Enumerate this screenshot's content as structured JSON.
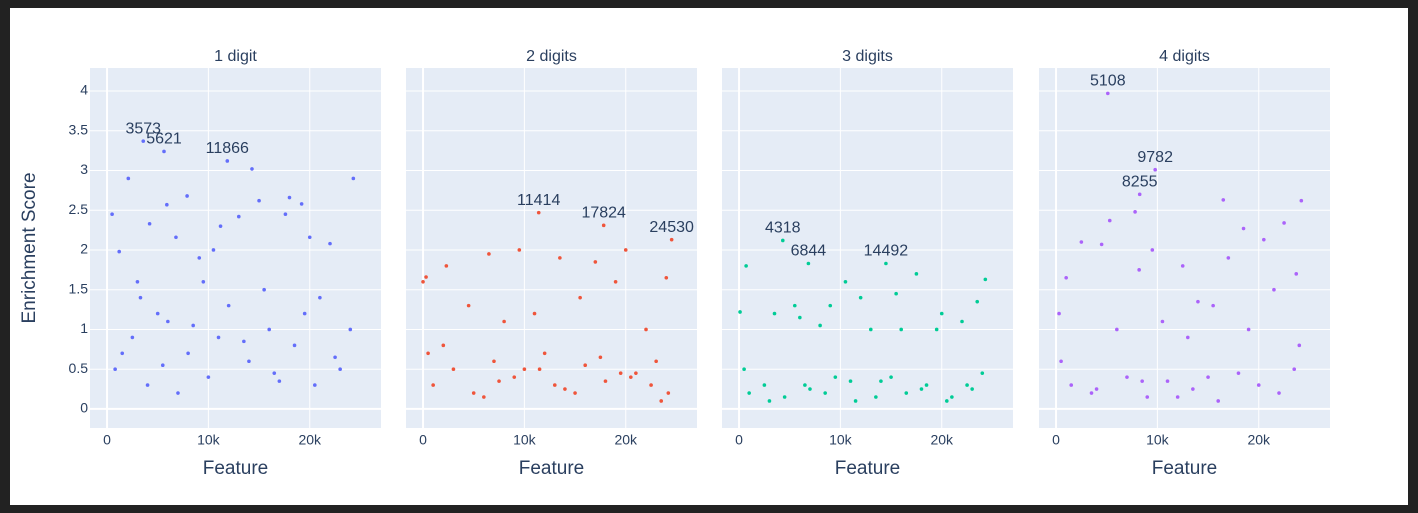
{
  "chart_data": {
    "type": "scatter",
    "y_title": "Enrichment Score",
    "x_title": "Feature",
    "xlim": [
      -1680,
      27030
    ],
    "xticks": [
      0,
      {
        "value": 10000,
        "label": "10k"
      },
      {
        "value": 20000,
        "label": "20k"
      }
    ],
    "ylim": [
      -0.24,
      4.29
    ],
    "yticks": [
      0,
      0.5,
      1,
      1.5,
      2,
      2.5,
      3,
      3.5,
      4
    ],
    "grid": true,
    "panels": [
      {
        "title": "1 digit",
        "color": "#636efa",
        "x": [
          500,
          1200,
          2100,
          3000,
          4200,
          5000,
          5900,
          6800,
          7900,
          9100,
          10500,
          11200,
          13000,
          14300,
          15000,
          17600,
          18000,
          19200,
          20000,
          22000,
          24300,
          800,
          2500,
          4000,
          6000,
          8000,
          10000,
          12000,
          14000,
          16000,
          18500,
          21000,
          23000,
          24000,
          3300,
          9500,
          15500,
          20500,
          7000,
          11000,
          1500,
          5500,
          13500,
          17000,
          22500,
          19500,
          8500,
          16500
        ],
        "y": [
          2.45,
          1.98,
          2.9,
          1.6,
          2.33,
          1.2,
          2.57,
          2.16,
          2.68,
          1.9,
          2.0,
          2.3,
          2.42,
          3.02,
          2.62,
          2.45,
          2.66,
          2.58,
          2.16,
          2.08,
          2.9,
          0.5,
          0.9,
          0.3,
          1.1,
          0.7,
          0.4,
          1.3,
          0.6,
          1.0,
          0.8,
          1.4,
          0.5,
          1.0,
          1.4,
          1.6,
          1.5,
          0.3,
          0.2,
          0.9,
          0.7,
          0.55,
          0.85,
          0.35,
          0.65,
          1.2,
          1.05,
          0.45
        ],
        "annotations": [
          {
            "x": 3573,
            "y": 3.37
          },
          {
            "x": 5621,
            "y": 3.24
          },
          {
            "x": 11866,
            "y": 3.12
          }
        ]
      },
      {
        "title": "2 digits",
        "color": "#ef553b",
        "x": [
          0,
          300,
          2300,
          6500,
          9500,
          13500,
          17000,
          20000,
          24000,
          19000,
          4500,
          8000,
          11000,
          15500,
          22000,
          1000,
          3000,
          5000,
          7000,
          9000,
          12000,
          14000,
          16000,
          18000,
          21000,
          23000,
          24200,
          2000,
          6000,
          10000,
          13000,
          17500,
          20500,
          23500,
          500,
          7500,
          11500,
          15000,
          19500,
          22500
        ],
        "y": [
          1.6,
          1.66,
          1.8,
          1.95,
          2.0,
          1.9,
          1.85,
          2.0,
          1.65,
          1.6,
          1.3,
          1.1,
          1.2,
          1.4,
          1.0,
          0.3,
          0.5,
          0.2,
          0.6,
          0.4,
          0.7,
          0.25,
          0.55,
          0.35,
          0.45,
          0.6,
          0.2,
          0.8,
          0.15,
          0.5,
          0.3,
          0.65,
          0.4,
          0.1,
          0.7,
          0.35,
          0.5,
          0.2,
          0.45,
          0.3
        ],
        "annotations": [
          {
            "x": 11414,
            "y": 2.47
          },
          {
            "x": 17824,
            "y": 2.31
          },
          {
            "x": 24530,
            "y": 2.13
          }
        ]
      },
      {
        "title": "3 digits",
        "color": "#00cc96",
        "x": [
          100,
          700,
          3500,
          5500,
          8000,
          10500,
          13000,
          15500,
          17500,
          19500,
          22000,
          24300,
          6000,
          9000,
          12000,
          16000,
          20000,
          23500,
          1000,
          2500,
          4500,
          7000,
          9500,
          11500,
          14000,
          16500,
          18500,
          21000,
          23000,
          24000,
          500,
          3000,
          6500,
          8500,
          11000,
          13500,
          15000,
          18000,
          20500,
          22500
        ],
        "y": [
          1.22,
          1.8,
          1.2,
          1.3,
          1.05,
          1.6,
          1.0,
          1.45,
          1.7,
          1.0,
          1.1,
          1.63,
          1.15,
          1.3,
          1.4,
          1.0,
          1.2,
          1.35,
          0.2,
          0.3,
          0.15,
          0.25,
          0.4,
          0.1,
          0.35,
          0.2,
          0.3,
          0.15,
          0.25,
          0.45,
          0.5,
          0.1,
          0.3,
          0.2,
          0.35,
          0.15,
          0.4,
          0.25,
          0.1,
          0.3
        ],
        "annotations": [
          {
            "x": 4318,
            "y": 2.12
          },
          {
            "x": 6844,
            "y": 1.83
          },
          {
            "x": 14492,
            "y": 1.83
          }
        ]
      },
      {
        "title": "4 digits",
        "color": "#ab63fa",
        "x": [
          300,
          1000,
          2500,
          4500,
          5300,
          7800,
          8200,
          9500,
          12500,
          14000,
          16500,
          17000,
          18500,
          20500,
          22500,
          23700,
          24200,
          6000,
          10500,
          13000,
          15500,
          19000,
          21500,
          24000,
          1500,
          3500,
          7000,
          9000,
          11000,
          13500,
          16000,
          18000,
          20000,
          22000,
          23500,
          500,
          4000,
          8500,
          12000,
          15000
        ],
        "y": [
          1.2,
          1.65,
          2.1,
          2.07,
          2.37,
          2.48,
          1.75,
          2.0,
          1.8,
          1.35,
          2.63,
          1.9,
          2.27,
          2.13,
          2.34,
          1.7,
          2.62,
          1.0,
          1.1,
          0.9,
          1.3,
          1.0,
          1.5,
          0.8,
          0.3,
          0.2,
          0.4,
          0.15,
          0.35,
          0.25,
          0.1,
          0.45,
          0.3,
          0.2,
          0.5,
          0.6,
          0.25,
          0.35,
          0.15,
          0.4
        ],
        "annotations": [
          {
            "x": 5108,
            "y": 3.97
          },
          {
            "x": 9782,
            "y": 3.01
          },
          {
            "x": 8255,
            "y": 2.7
          }
        ]
      }
    ]
  }
}
